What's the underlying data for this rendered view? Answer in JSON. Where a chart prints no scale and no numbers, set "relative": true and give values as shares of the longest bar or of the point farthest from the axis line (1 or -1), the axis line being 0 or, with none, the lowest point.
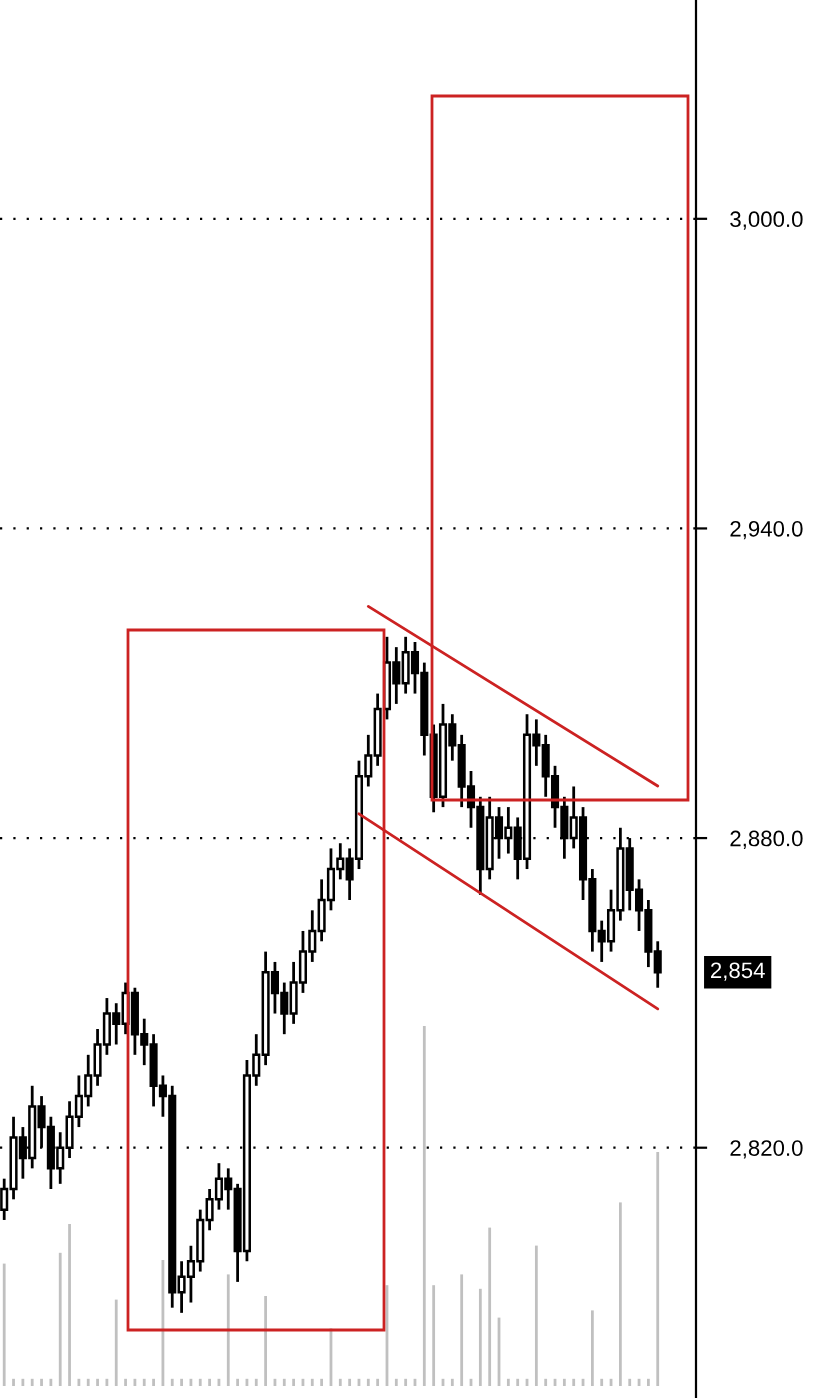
{
  "chart_data": [
    {
      "type": "candlestick",
      "categories": [
        null,
        null,
        null,
        null,
        null,
        null,
        null,
        null,
        null,
        null,
        null,
        null,
        null,
        null,
        null,
        null,
        null,
        null,
        null,
        null,
        null,
        null,
        null,
        null,
        null,
        null,
        null,
        null,
        null,
        null,
        null,
        null,
        null,
        null,
        null,
        null,
        null,
        null,
        null,
        null,
        null,
        null,
        null,
        null,
        null,
        null,
        null,
        null,
        null,
        null,
        null,
        null,
        null,
        null,
        null,
        null,
        null,
        null,
        null,
        null,
        null,
        null,
        null,
        null,
        null,
        null,
        null,
        null,
        null,
        null,
        null
      ],
      "ohlc": [
        [
          2808,
          2814,
          2806,
          2812
        ],
        [
          2812,
          2826,
          2810,
          2822
        ],
        [
          2822,
          2824,
          2814,
          2818
        ],
        [
          2818,
          2832,
          2816,
          2828
        ],
        [
          2828,
          2830,
          2820,
          2824
        ],
        [
          2824,
          2826,
          2812,
          2816
        ],
        [
          2816,
          2823,
          2813,
          2820
        ],
        [
          2820,
          2829,
          2818,
          2826
        ],
        [
          2826,
          2834,
          2824,
          2830
        ],
        [
          2830,
          2838,
          2828,
          2834
        ],
        [
          2834,
          2843,
          2832,
          2840
        ],
        [
          2840,
          2849,
          2838,
          2846
        ],
        [
          2846,
          2848,
          2840,
          2844
        ],
        [
          2844,
          2852,
          2842,
          2850
        ],
        [
          2850,
          2851,
          2838,
          2842
        ],
        [
          2842,
          2845,
          2836,
          2840
        ],
        [
          2840,
          2842,
          2828,
          2832
        ],
        [
          2832,
          2834,
          2826,
          2830
        ],
        [
          2830,
          2832,
          2789,
          2792
        ],
        [
          2792,
          2798,
          2788,
          2795
        ],
        [
          2795,
          2801,
          2790,
          2798
        ],
        [
          2798,
          2808,
          2796,
          2806
        ],
        [
          2806,
          2812,
          2804,
          2810
        ],
        [
          2810,
          2817,
          2808,
          2814
        ],
        [
          2814,
          2816,
          2808,
          2812
        ],
        [
          2812,
          2813,
          2794,
          2800
        ],
        [
          2800,
          2837,
          2798,
          2834
        ],
        [
          2834,
          2842,
          2832,
          2838
        ],
        [
          2838,
          2858,
          2836,
          2854
        ],
        [
          2854,
          2856,
          2846,
          2850
        ],
        [
          2850,
          2852,
          2842,
          2846
        ],
        [
          2846,
          2856,
          2844,
          2852
        ],
        [
          2852,
          2862,
          2850,
          2858
        ],
        [
          2858,
          2866,
          2856,
          2862
        ],
        [
          2862,
          2872,
          2860,
          2868
        ],
        [
          2868,
          2878,
          2866,
          2874
        ],
        [
          2874,
          2879,
          2872,
          2876
        ],
        [
          2876,
          2878,
          2868,
          2872
        ],
        [
          2876,
          2895,
          2874,
          2892
        ],
        [
          2892,
          2900,
          2890,
          2896
        ],
        [
          2896,
          2908,
          2894,
          2905
        ],
        [
          2905,
          2919,
          2903,
          2914
        ],
        [
          2914,
          2917,
          2906,
          2910
        ],
        [
          2910,
          2919,
          2908,
          2916
        ],
        [
          2916,
          2918,
          2908,
          2912
        ],
        [
          2912,
          2914,
          2896,
          2900
        ],
        [
          2900,
          2902,
          2885,
          2888
        ],
        [
          2888,
          2906,
          2886,
          2902
        ],
        [
          2902,
          2904,
          2895,
          2898
        ],
        [
          2898,
          2900,
          2886,
          2890
        ],
        [
          2890,
          2893,
          2882,
          2886
        ],
        [
          2886,
          2888,
          2869,
          2874
        ],
        [
          2874,
          2888,
          2872,
          2884
        ],
        [
          2884,
          2886,
          2876,
          2880
        ],
        [
          2880,
          2886,
          2877,
          2882
        ],
        [
          2882,
          2884,
          2872,
          2876
        ],
        [
          2876,
          2904,
          2874,
          2900
        ],
        [
          2900,
          2903,
          2894,
          2898
        ],
        [
          2898,
          2900,
          2888,
          2892
        ],
        [
          2892,
          2894,
          2882,
          2886
        ],
        [
          2886,
          2888,
          2876,
          2880
        ],
        [
          2880,
          2890,
          2878,
          2884
        ],
        [
          2884,
          2886,
          2868,
          2872
        ],
        [
          2872,
          2874,
          2858,
          2862
        ],
        [
          2862,
          2864,
          2856,
          2860
        ],
        [
          2860,
          2870,
          2858,
          2866
        ],
        [
          2866,
          2882,
          2864,
          2878
        ],
        [
          2878,
          2880,
          2866,
          2870
        ],
        [
          2870,
          2872,
          2862,
          2866
        ],
        [
          2866,
          2868,
          2855,
          2858
        ],
        [
          2858,
          2860,
          2851,
          2854
        ]
      ],
      "color": "#000000",
      "ylim": [
        2771.5,
        3042.4
      ],
      "yticks": [
        {
          "value": 2820,
          "label": "2,820.0"
        },
        {
          "value": 2880,
          "label": "2,880.0"
        },
        {
          "value": 2940,
          "label": "2,940.0"
        },
        {
          "value": 3000,
          "label": "3,000.0"
        }
      ],
      "grid": "y",
      "tick_labels": "y",
      "series": [
        {
          "type": "line",
          "color": "#cc2222",
          "values": [
            null,
            null,
            null,
            null,
            null,
            null,
            null,
            null,
            null,
            null,
            null,
            null,
            null,
            null,
            null,
            null,
            null,
            null,
            null,
            null,
            null,
            null,
            null,
            null,
            null,
            null,
            null,
            null,
            null,
            null,
            null,
            null,
            null,
            null,
            null,
            null,
            null,
            null,
            null,
            2924.9,
            null,
            null,
            null,
            null,
            null,
            null,
            null,
            null,
            null,
            null,
            null,
            null,
            null,
            null,
            null,
            null,
            null,
            null,
            null,
            null,
            null,
            null,
            null,
            null,
            null,
            null,
            null,
            null,
            null,
            null,
            2890.1
          ]
        },
        {
          "type": "line",
          "color": "#cc2222",
          "values": [
            null,
            null,
            null,
            null,
            null,
            null,
            null,
            null,
            null,
            null,
            null,
            null,
            null,
            null,
            null,
            null,
            null,
            null,
            null,
            null,
            null,
            null,
            null,
            null,
            null,
            null,
            null,
            null,
            null,
            null,
            null,
            null,
            null,
            null,
            null,
            null,
            null,
            null,
            2884.7,
            null,
            null,
            null,
            null,
            null,
            null,
            null,
            null,
            null,
            null,
            null,
            null,
            null,
            null,
            null,
            null,
            null,
            null,
            null,
            null,
            null,
            null,
            null,
            null,
            null,
            null,
            null,
            null,
            null,
            null,
            null,
            2846.9
          ]
        }
      ],
      "annotations": [
        "2,854"
      ]
    },
    {
      "type": "bar",
      "relative": true,
      "color": "#c0c0c0",
      "tick_labels": false,
      "categories": [
        null,
        null,
        null,
        null,
        null,
        null,
        null,
        null,
        null,
        null,
        null,
        null,
        null,
        null,
        null,
        null,
        null,
        null,
        null,
        null,
        null,
        null,
        null,
        null,
        null,
        null,
        null,
        null,
        null,
        null,
        null,
        null,
        null,
        null,
        null,
        null,
        null,
        null,
        null,
        null,
        null,
        null,
        null,
        null,
        null,
        null,
        null,
        null,
        null,
        null,
        null,
        null,
        null,
        null,
        null,
        null,
        null,
        null,
        null,
        null,
        null,
        null,
        null,
        null,
        null,
        null,
        null,
        null,
        null,
        null,
        null
      ],
      "values": [
        0.34,
        0.02,
        0.02,
        0.02,
        0.02,
        0.02,
        0.37,
        0.45,
        0.02,
        0.02,
        0.02,
        0.02,
        0.24,
        0.02,
        0.02,
        0.02,
        0.02,
        0.35,
        0.02,
        0.02,
        0.02,
        0.02,
        0.02,
        0.02,
        0.31,
        0.02,
        0.02,
        0.02,
        0.25,
        0.02,
        0.02,
        0.02,
        0.02,
        0.02,
        0.02,
        0.16,
        0.02,
        0.02,
        0.02,
        0.02,
        0.02,
        0.28,
        0.02,
        0.02,
        0.02,
        1,
        0.28,
        0.02,
        0.02,
        0.31,
        0.02,
        0.27,
        0.44,
        0.19,
        0.02,
        0.02,
        0.02,
        0.39,
        0.02,
        0.02,
        0.02,
        0.02,
        0.02,
        0.21,
        0.02,
        0.02,
        0.51,
        0.02,
        0.02,
        0.02,
        0.65
      ]
    }
  ]
}
